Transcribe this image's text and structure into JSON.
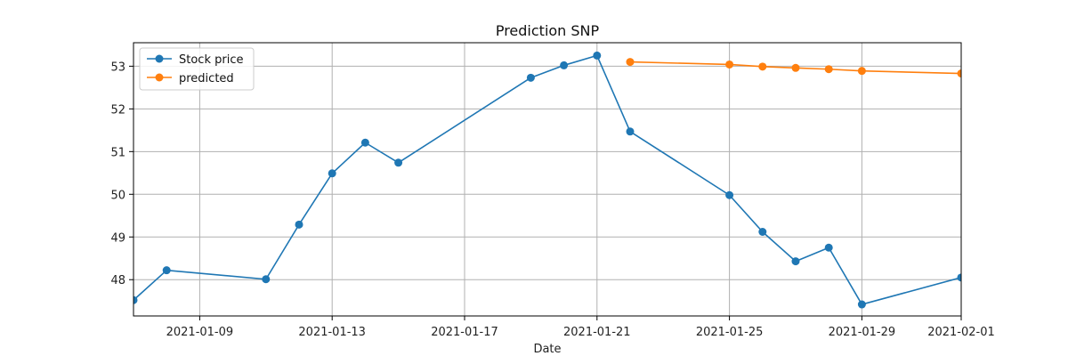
{
  "chart_data": {
    "type": "line",
    "title": "Prediction SNP",
    "xlabel": "Date",
    "ylabel": "",
    "grid": true,
    "legend_position": "top-left",
    "xlim": [
      "2021-01-07",
      "2021-02-01"
    ],
    "ylim": [
      47.15,
      53.55
    ],
    "x_ticks": [
      "2021-01-09",
      "2021-01-13",
      "2021-01-17",
      "2021-01-21",
      "2021-01-25",
      "2021-01-29",
      "2021-02-01"
    ],
    "y_ticks": [
      48,
      49,
      50,
      51,
      52,
      53
    ],
    "series": [
      {
        "name": "Stock price",
        "color": "#1f77b4",
        "x": [
          "2021-01-07",
          "2021-01-08",
          "2021-01-11",
          "2021-01-12",
          "2021-01-13",
          "2021-01-14",
          "2021-01-15",
          "2021-01-19",
          "2021-01-20",
          "2021-01-21",
          "2021-01-22",
          "2021-01-25",
          "2021-01-26",
          "2021-01-27",
          "2021-01-28",
          "2021-01-29",
          "2021-02-01"
        ],
        "values": [
          47.52,
          48.22,
          48.01,
          49.29,
          50.49,
          51.21,
          50.74,
          52.73,
          53.02,
          53.25,
          51.47,
          49.98,
          49.12,
          48.43,
          48.75,
          47.42,
          48.05
        ]
      },
      {
        "name": "predicted",
        "color": "#ff7f0e",
        "x": [
          "2021-01-22",
          "2021-01-25",
          "2021-01-26",
          "2021-01-27",
          "2021-01-28",
          "2021-01-29",
          "2021-02-01"
        ],
        "values": [
          53.1,
          53.04,
          52.99,
          52.96,
          52.93,
          52.89,
          52.83
        ]
      }
    ]
  }
}
